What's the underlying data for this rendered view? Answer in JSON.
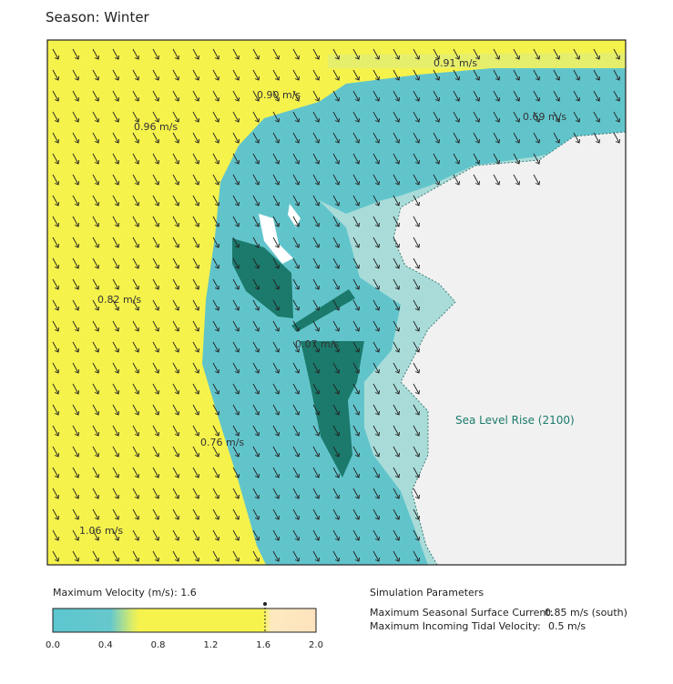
{
  "header": {
    "title": "Season: Winter"
  },
  "map": {
    "labels": [
      "0.91 m/s",
      "0.90 m/s",
      "0.69 m/s",
      "0.96 m/s",
      "0.82 m/s",
      "0.07 m/s",
      "0.76 m/s",
      "1.06 m/s"
    ],
    "zone_label": "Sea Level Rise (2100)"
  },
  "legend": {
    "title": "Maximum Velocity (m/s): 1.6",
    "ticks": [
      "0.0",
      "0.4",
      "0.8",
      "1.2",
      "1.6",
      "2.0"
    ]
  },
  "parameters": {
    "title": "Simulation Parameters",
    "rows": [
      [
        "Maximum Seasonal Surface Current:",
        "0.85 m/s (south)"
      ],
      [
        "Maximum Incoming Tidal Velocity:",
        "0.5 m/s"
      ]
    ]
  }
}
